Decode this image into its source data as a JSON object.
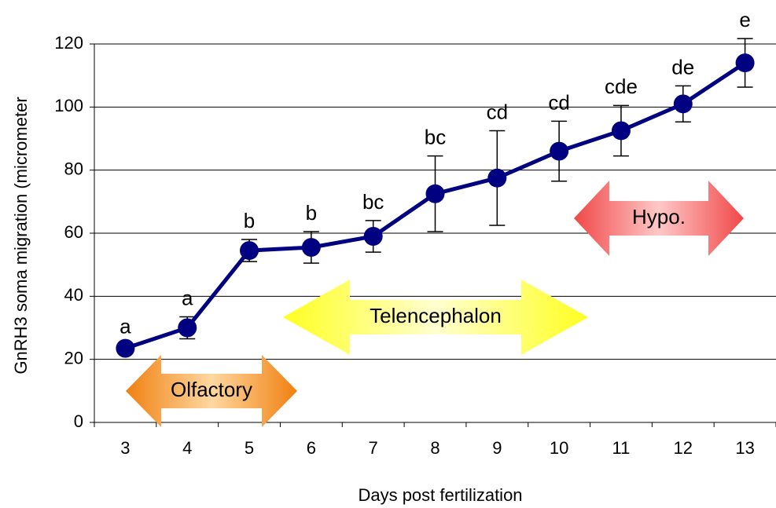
{
  "chart_data": {
    "type": "line",
    "x_label": "Days post fertilization",
    "y_label": "GnRH3 soma migration (micrometer",
    "categories": [
      "3",
      "4",
      "5",
      "6",
      "7",
      "8",
      "9",
      "10",
      "11",
      "12",
      "13"
    ],
    "series": [
      {
        "color": "#000080",
        "values": [
          23.5,
          30,
          54.5,
          55.5,
          59,
          72.5,
          77.5,
          86,
          92.5,
          101,
          114
        ],
        "errors": [
          1,
          3.5,
          3.5,
          5,
          5,
          12,
          15,
          9.5,
          8,
          5.7,
          7.7
        ],
        "letters": [
          "a",
          "a",
          "b",
          "b",
          "bc",
          "bc",
          "cd",
          "cd",
          "cde",
          "de",
          "e"
        ]
      }
    ],
    "annotations": [
      "Olfactory",
      "Telencephalon",
      "Hypo."
    ],
    "ylim": [
      0,
      120
    ],
    "yticks": [
      0,
      20,
      40,
      60,
      80,
      100,
      120
    ],
    "grid": true
  }
}
